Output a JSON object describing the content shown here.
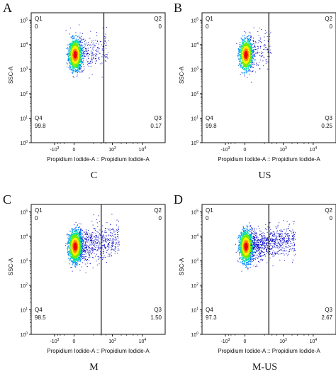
{
  "chart_data": [
    {
      "type": "scatter",
      "panel_letter": "A",
      "caption": "C",
      "xlabel": "Propidium Iodide-A :: Propidium Iodide-A",
      "ylabel": "SSC-A",
      "x_scale": "biexponential",
      "y_scale": "log",
      "xticks": [
        "-10^3",
        "0",
        "10^3",
        "10^4"
      ],
      "yticks": [
        "10^0",
        "10^1",
        "10^2",
        "10^3",
        "10^4",
        "10^5"
      ],
      "gate_x": 500,
      "quadrants": {
        "Q1": "0",
        "Q2": "0",
        "Q3": "0.17",
        "Q4": "99.8"
      },
      "quadrant_labels": [
        "Q1",
        "Q2",
        "Q3",
        "Q4"
      ]
    },
    {
      "type": "scatter",
      "panel_letter": "B",
      "caption": "US",
      "xlabel": "Propidium Iodide-A :: Propidium Iodide-A",
      "ylabel": "SSC-A",
      "x_scale": "biexponential",
      "y_scale": "log",
      "xticks": [
        "-10^3",
        "0",
        "10^3",
        "10^4"
      ],
      "yticks": [
        "10^0",
        "10^1",
        "10^2",
        "10^3",
        "10^4",
        "10^5"
      ],
      "gate_x": 300,
      "quadrants": {
        "Q1": "0",
        "Q2": "0",
        "Q3": "0.25",
        "Q4": "99.8"
      },
      "quadrant_labels": [
        "Q1",
        "Q2",
        "Q3",
        "Q4"
      ]
    },
    {
      "type": "scatter",
      "panel_letter": "C",
      "caption": "M",
      "xlabel": "Propidium Iodide-A :: Propidium Iodide-A",
      "ylabel": "SSC-A",
      "x_scale": "biexponential",
      "y_scale": "log",
      "xticks": [
        "-10^3",
        "0",
        "10^3",
        "10^4"
      ],
      "yticks": [
        "10^0",
        "10^1",
        "10^2",
        "10^3",
        "10^4",
        "10^5"
      ],
      "gate_x": 400,
      "quadrants": {
        "Q1": "0",
        "Q2": "0",
        "Q3": "1.50",
        "Q4": "98.5"
      },
      "quadrant_labels": [
        "Q1",
        "Q2",
        "Q3",
        "Q4"
      ]
    },
    {
      "type": "scatter",
      "panel_letter": "D",
      "caption": "M-US",
      "xlabel": "Propidium Iodide-A :: Propidium Iodide-A",
      "ylabel": "SSC-A",
      "x_scale": "biexponential",
      "y_scale": "log",
      "xticks": [
        "-10^3",
        "0",
        "10^3",
        "10^4"
      ],
      "yticks": [
        "10^0",
        "10^1",
        "10^2",
        "10^3",
        "10^4",
        "10^5"
      ],
      "gate_x": 300,
      "quadrants": {
        "Q1": "0",
        "Q2": "0",
        "Q3": "2.67",
        "Q4": "97.3"
      },
      "quadrant_labels": [
        "Q1",
        "Q2",
        "Q3",
        "Q4"
      ]
    }
  ],
  "colors": {
    "density": [
      "#0000c8",
      "#0088ff",
      "#00ddaa",
      "#66ee00",
      "#ffee00",
      "#ff8800",
      "#ee0000"
    ],
    "axis": "#111111"
  }
}
